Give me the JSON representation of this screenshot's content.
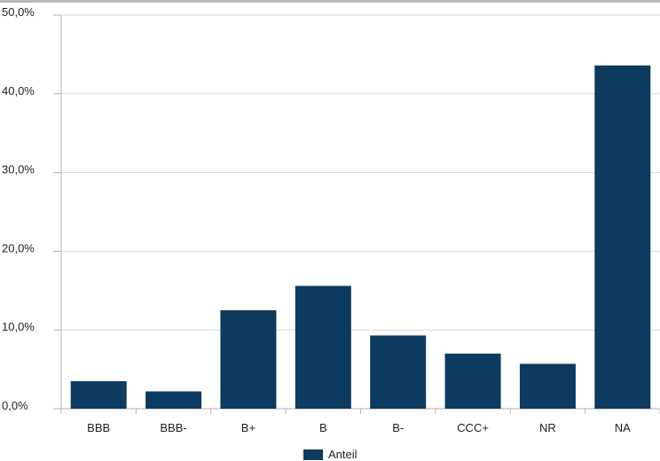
{
  "chart_data": {
    "type": "bar",
    "categories": [
      "BBB",
      "BBB-",
      "B+",
      "B",
      "B-",
      "CCC+",
      "NR",
      "NA"
    ],
    "series": [
      {
        "name": "Anteil",
        "values": [
          3.5,
          2.2,
          12.5,
          15.6,
          9.3,
          7.0,
          5.7,
          43.6
        ],
        "color": "#0d3a5f"
      }
    ],
    "y_ticks": [
      "0,0%",
      "10,0%",
      "20,0%",
      "30,0%",
      "40,0%",
      "50,0%"
    ],
    "ylim": [
      0,
      50
    ],
    "grid": true,
    "legend": "bottom-center",
    "title": "",
    "xlabel": "",
    "ylabel": ""
  }
}
